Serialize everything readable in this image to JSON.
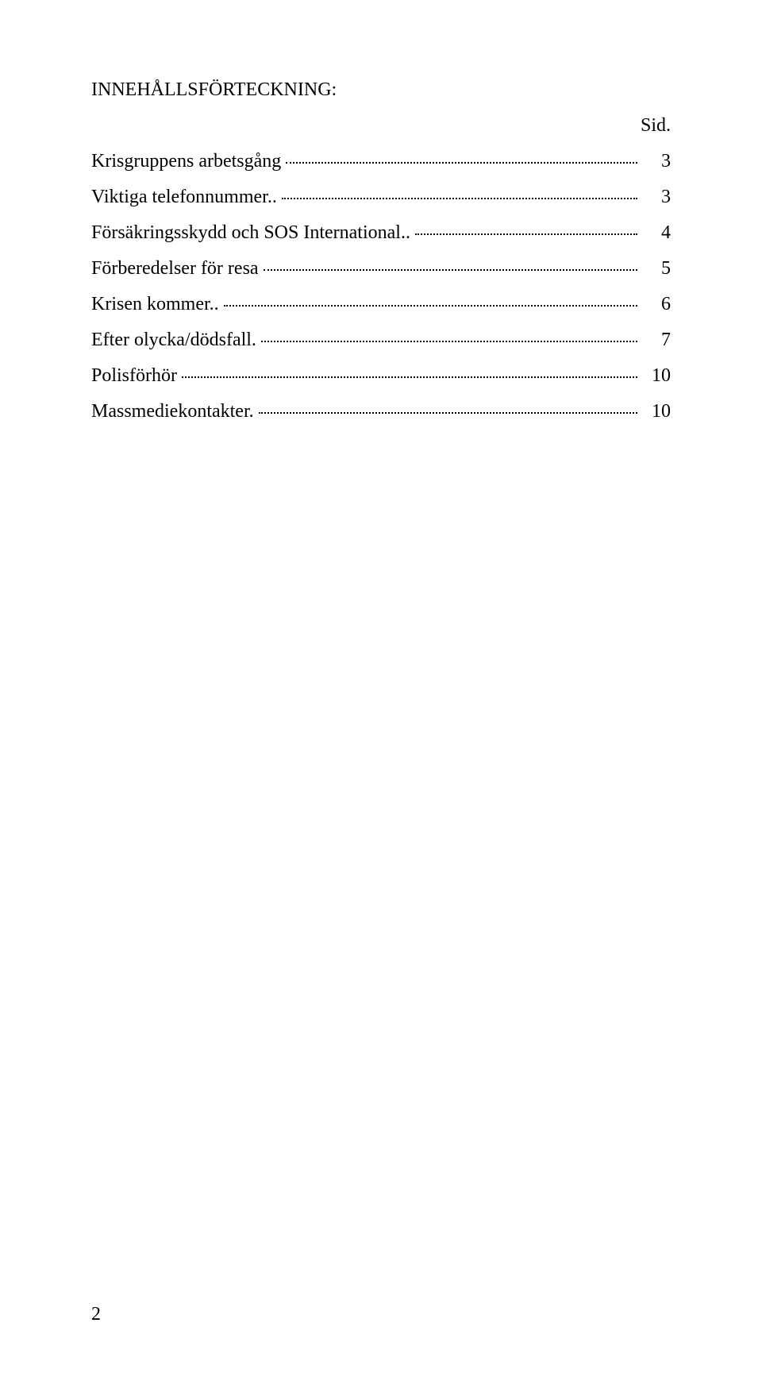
{
  "title": "INNEHÅLLSFÖRTECKNING:",
  "side_label": "Sid.",
  "toc": [
    {
      "label": "Krisgruppens arbetsgång",
      "page": "3"
    },
    {
      "label": "Viktiga telefonnummer..",
      "page": "3"
    },
    {
      "label": "Försäkringsskydd och SOS International..",
      "page": "4"
    },
    {
      "label": "Förberedelser för resa",
      "page": "5"
    },
    {
      "label": "Krisen kommer..",
      "page": "6"
    },
    {
      "label": "Efter olycka/dödsfall.",
      "page": "7"
    },
    {
      "label": "Polisförhör",
      "page": "10"
    },
    {
      "label": "Massmediekontakter.",
      "page": "10"
    }
  ],
  "page_number": "2",
  "colors": {
    "background": "#ffffff",
    "text": "#000000"
  },
  "typography": {
    "font_family": "Times New Roman",
    "font_size_pt": 18
  }
}
